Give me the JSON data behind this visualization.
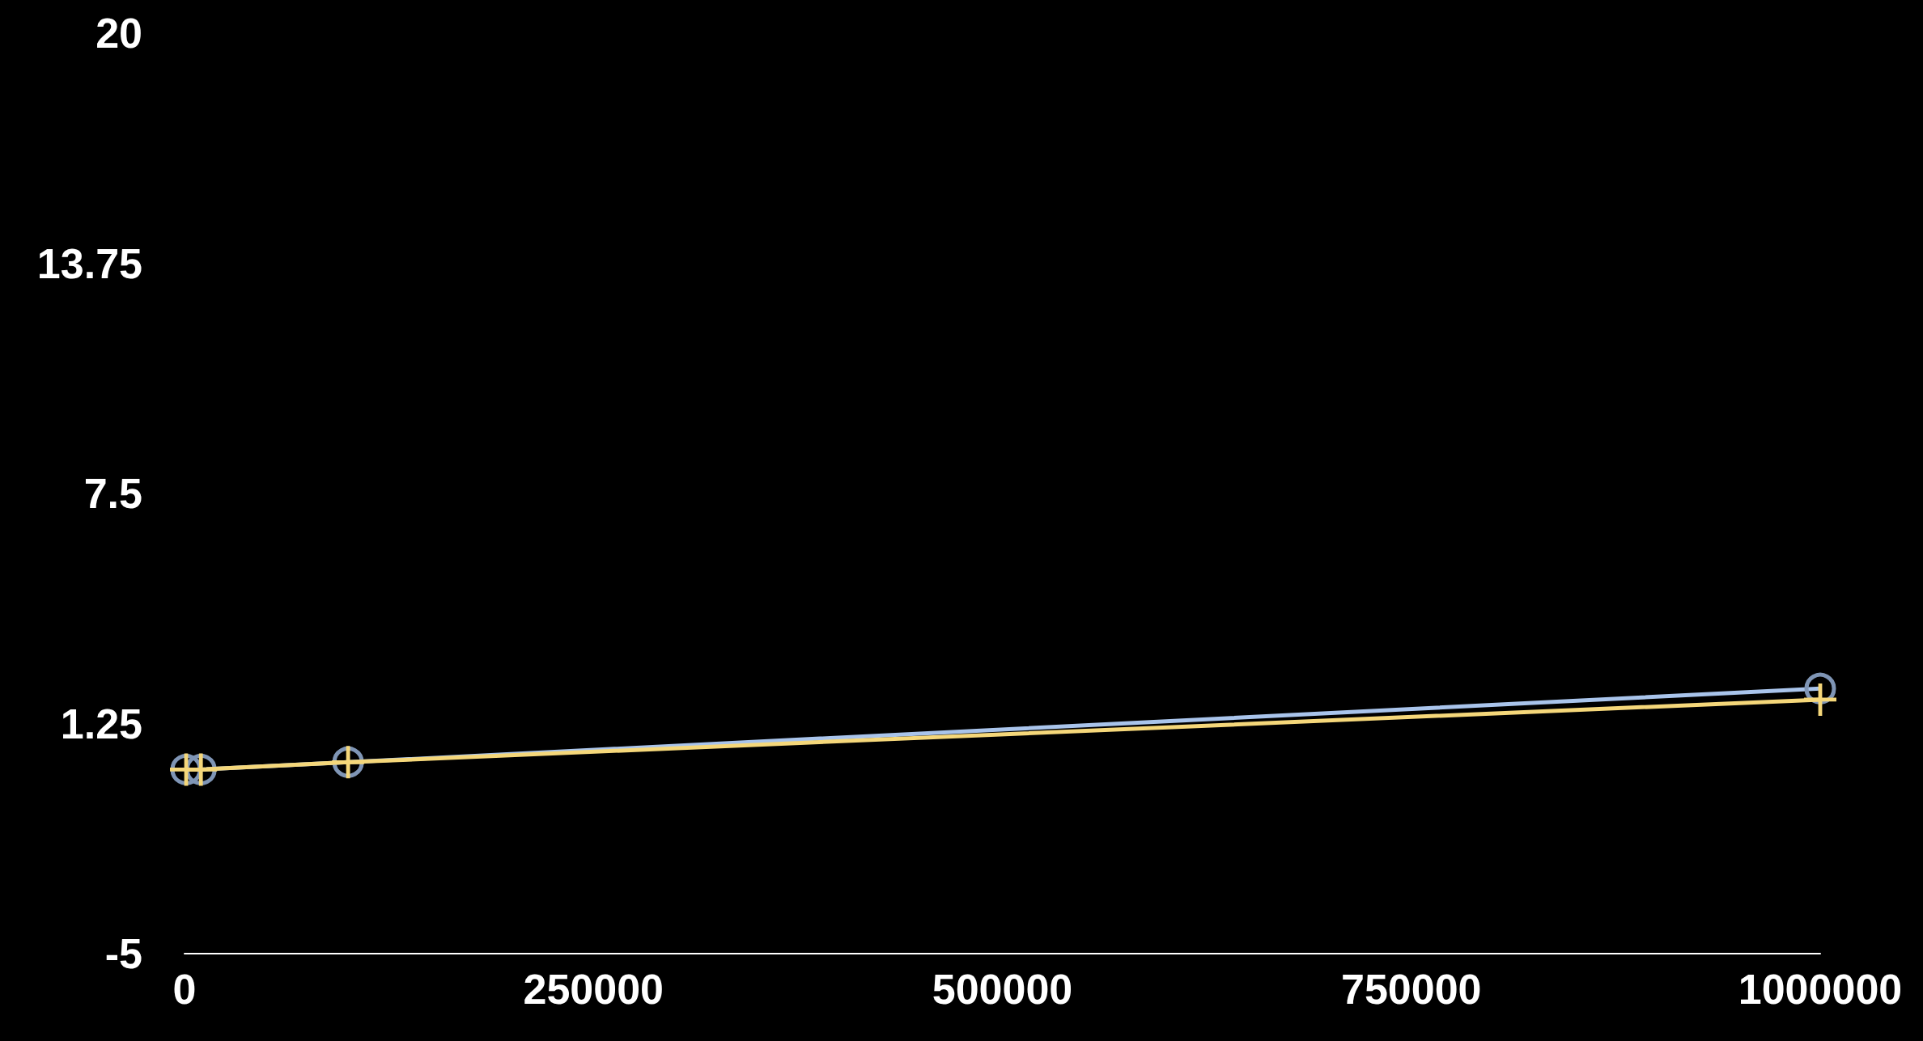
{
  "chart_data": {
    "type": "line",
    "x": [
      1000,
      10000,
      100000,
      1000000
    ],
    "series": [
      {
        "color": "#a9c4eb",
        "marker": "circle",
        "values": [
          0.0,
          0.0,
          0.2,
          2.2
        ]
      },
      {
        "color": "#f5d77a",
        "marker": "cross",
        "values": [
          0.0,
          0.0,
          0.2,
          1.9
        ]
      }
    ],
    "xlim": [
      0,
      1000000
    ],
    "xticks": [
      0,
      250000,
      500000,
      750000,
      1000000
    ],
    "ylim": [
      -5,
      20
    ],
    "yticks": [
      -5,
      1.25,
      7.5,
      13.75,
      20
    ],
    "grid": false
  }
}
